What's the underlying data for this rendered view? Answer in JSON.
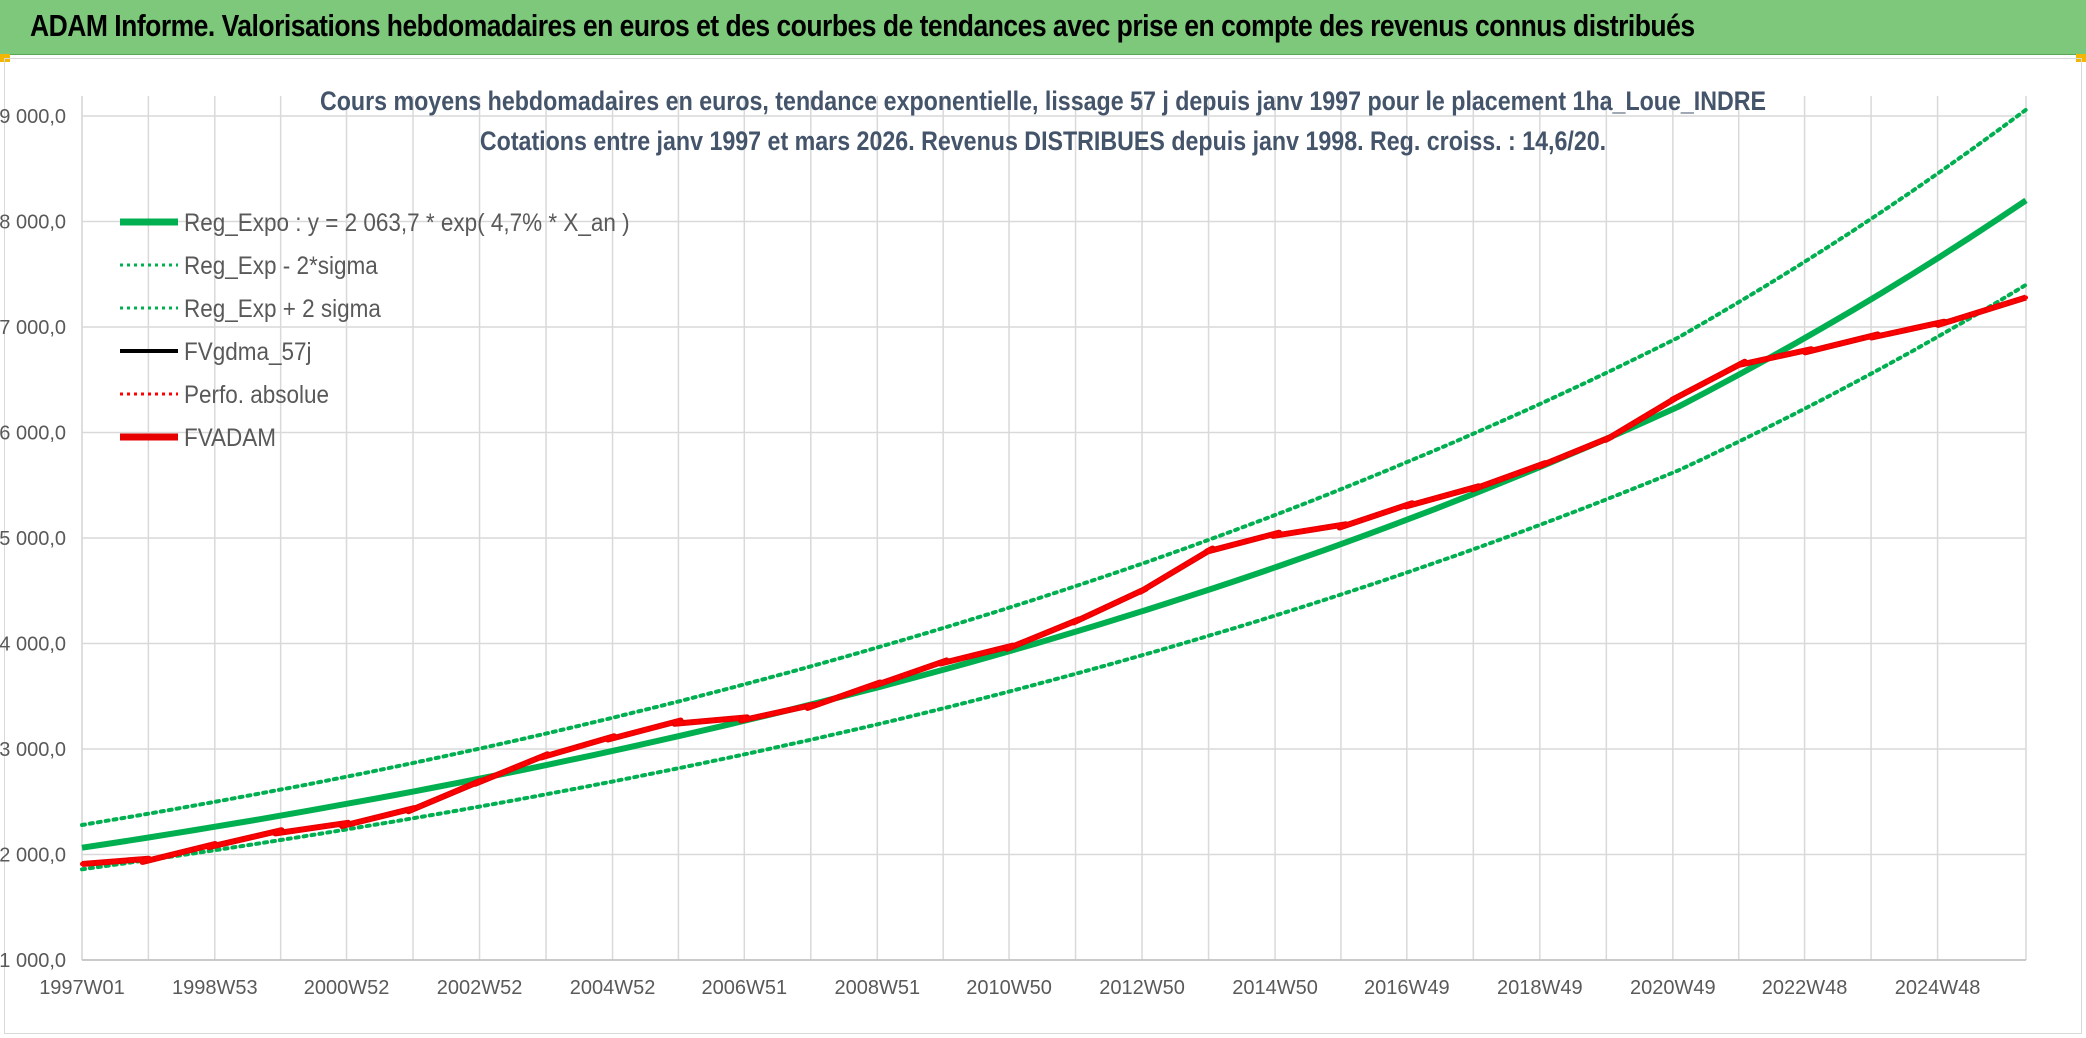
{
  "banner": {
    "title": "ADAM Informe. Valorisations hebdomadaires en euros et des courbes de tendances avec prise en compte des revenus connus distribués",
    "color": "#7dc87a"
  },
  "chart_data": {
    "type": "line",
    "title": "Cours moyens hebdomadaires en euros, tendance exponentielle, lissage 57 j depuis janv 1997 pour le placement 1ha_Loue_INDRE",
    "subtitle": "Cotations entre janv 1997 et mars 2026. Revenus DISTRIBUES depuis janv 1998. Reg. croiss. : 14,6/20.",
    "x_start": "1997W01",
    "x_end": "2026W13",
    "x_tick_labels": [
      "1997W01",
      "1998W53",
      "2000W52",
      "2002W52",
      "2004W52",
      "2006W51",
      "2008W51",
      "2010W50",
      "2012W50",
      "2014W50",
      "2016W49",
      "2018W49",
      "2020W49",
      "2022W48",
      "2024W48"
    ],
    "ylim": [
      1000,
      9000
    ],
    "y_tick_labels": [
      "1 000,0",
      "2 000,0",
      "3 000,0",
      "4 000,0",
      "5 000,0",
      "6 000,0",
      "7 000,0",
      "8 000,0",
      "9 000,0"
    ],
    "grid": true,
    "legend_position": "top-left",
    "series": [
      {
        "name": "Reg_Expo : y = 2 063,7 * exp( 4,7% *  X_an )",
        "color": "#00b050",
        "style": "solid-thick",
        "x": [
          "1997W01",
          "2001W01",
          "2005W01",
          "2009W01",
          "2013W01",
          "2017W01",
          "2021W01",
          "2026W13"
        ],
        "values": [
          2064,
          2482,
          2985,
          3590,
          4318,
          5192,
          6244,
          8200
        ]
      },
      {
        "name": "Reg_Exp - 2*sigma",
        "color": "#00b050",
        "style": "dotted",
        "x": [
          "1997W01",
          "2001W01",
          "2005W01",
          "2009W01",
          "2013W01",
          "2017W01",
          "2021W01",
          "2026W13"
        ],
        "values": [
          1860,
          2240,
          2695,
          3240,
          3900,
          4690,
          5640,
          7400
        ]
      },
      {
        "name": "Reg_Exp + 2 sigma",
        "color": "#00b050",
        "style": "dotted",
        "x": [
          "1997W01",
          "2001W01",
          "2005W01",
          "2009W01",
          "2013W01",
          "2017W01",
          "2021W01",
          "2026W13"
        ],
        "values": [
          2280,
          2740,
          3300,
          3970,
          4770,
          5740,
          6900,
          9060
        ]
      },
      {
        "name": "FVgdma_57j",
        "color": "#000000",
        "style": "solid",
        "x": [
          "1997W01",
          "1998W01",
          "1999W01",
          "2000W01",
          "2001W01",
          "2002W01",
          "2003W01",
          "2004W01",
          "2005W01",
          "2006W01",
          "2007W01",
          "2008W01",
          "2009W01",
          "2010W01",
          "2011W01",
          "2012W01",
          "2013W01",
          "2014W01",
          "2015W01",
          "2016W01",
          "2017W01",
          "2018W01",
          "2019W01",
          "2020W01",
          "2021W01",
          "2022W01",
          "2023W01",
          "2024W01",
          "2025W01",
          "2026W13"
        ],
        "values": [
          1910,
          1960,
          2100,
          2230,
          2300,
          2440,
          2700,
          2950,
          3120,
          3270,
          3300,
          3420,
          3630,
          3840,
          3980,
          4230,
          4520,
          4900,
          5050,
          5130,
          5330,
          5490,
          5710,
          5960,
          6340,
          6670,
          6790,
          6930,
          7050,
          7280
        ]
      },
      {
        "name": "Perfo. absolue",
        "color": "#ff0000",
        "style": "dotted",
        "x": [
          "1997W01",
          "1998W01",
          "1999W01",
          "2000W01",
          "2001W01",
          "2002W01",
          "2003W01",
          "2004W01",
          "2005W01",
          "2006W01",
          "2007W01",
          "2008W01",
          "2009W01",
          "2010W01",
          "2011W01",
          "2012W01",
          "2013W01",
          "2014W01",
          "2015W01",
          "2016W01",
          "2017W01",
          "2018W01",
          "2019W01",
          "2020W01",
          "2021W01",
          "2022W01",
          "2023W01",
          "2024W01",
          "2025W01",
          "2026W13"
        ],
        "values": [
          1910,
          1960,
          2100,
          2230,
          2300,
          2440,
          2700,
          2950,
          3120,
          3270,
          3300,
          3420,
          3630,
          3840,
          3980,
          4230,
          4520,
          4900,
          5050,
          5130,
          5330,
          5490,
          5710,
          5960,
          6340,
          6670,
          6790,
          6930,
          7050,
          7280
        ]
      },
      {
        "name": "FVADAM",
        "color": "#e60000",
        "style": "solid-thick",
        "x": [
          "1997W01",
          "1998W01",
          "1999W01",
          "2000W01",
          "2001W01",
          "2002W01",
          "2003W01",
          "2004W01",
          "2005W01",
          "2006W01",
          "2007W01",
          "2008W01",
          "2009W01",
          "2010W01",
          "2011W01",
          "2012W01",
          "2013W01",
          "2014W01",
          "2015W01",
          "2016W01",
          "2017W01",
          "2018W01",
          "2019W01",
          "2020W01",
          "2021W01",
          "2022W01",
          "2023W01",
          "2024W01",
          "2025W01",
          "2026W13"
        ],
        "values": [
          1910,
          1960,
          2100,
          2230,
          2300,
          2440,
          2700,
          2950,
          3120,
          3270,
          3300,
          3420,
          3630,
          3840,
          3980,
          4230,
          4520,
          4900,
          5050,
          5130,
          5330,
          5490,
          5710,
          5960,
          6340,
          6670,
          6790,
          6930,
          7050,
          7280
        ]
      }
    ]
  }
}
